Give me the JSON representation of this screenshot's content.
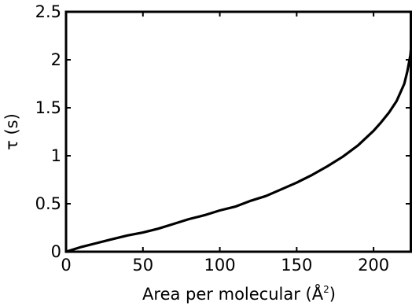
{
  "chart_data": {
    "type": "line",
    "title": "",
    "xlabel": "Area per molecular (Å",
    "xlabel_sup": "2",
    "xlabel_close": ")",
    "ylabel": "τ (s)",
    "xlim": [
      0,
      225
    ],
    "ylim": [
      0,
      2.5
    ],
    "x_ticks": [
      0,
      50,
      100,
      150,
      200
    ],
    "x_tick_labels": [
      "0",
      "50",
      "100",
      "150",
      "200"
    ],
    "y_ticks": [
      0,
      0.5,
      1,
      1.5,
      2,
      2.5
    ],
    "y_tick_labels": [
      "0",
      "0.5",
      "1",
      "1.5",
      "2",
      "2.5"
    ],
    "grid": false,
    "legend": "none",
    "colors": {
      "line": "#000000",
      "axes": "#000000",
      "background": "#ffffff"
    },
    "series": [
      {
        "x": [
          0,
          10,
          20,
          30,
          40,
          50,
          60,
          70,
          80,
          90,
          100,
          110,
          120,
          130,
          140,
          150,
          160,
          170,
          180,
          190,
          200,
          205,
          210,
          215,
          220,
          222,
          224,
          225
        ],
        "y": [
          0.0,
          0.05,
          0.09,
          0.13,
          0.17,
          0.2,
          0.24,
          0.29,
          0.34,
          0.38,
          0.43,
          0.47,
          0.53,
          0.58,
          0.65,
          0.72,
          0.8,
          0.89,
          0.99,
          1.11,
          1.26,
          1.35,
          1.45,
          1.57,
          1.75,
          1.88,
          2.05,
          2.25
        ]
      }
    ]
  }
}
